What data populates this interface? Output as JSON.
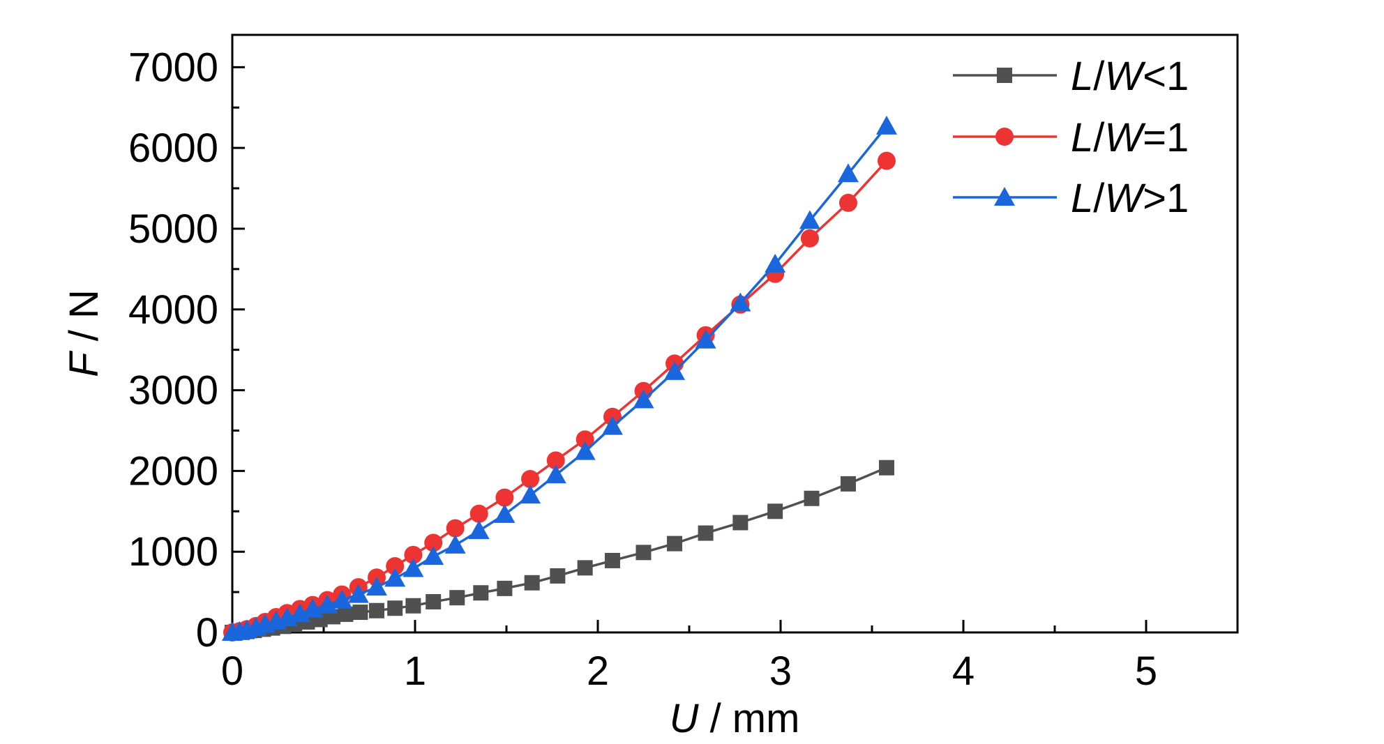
{
  "chart_data": {
    "type": "line",
    "xlabel": {
      "italic": "U",
      "rest": " / mm"
    },
    "ylabel": {
      "italic": "F",
      "rest": " / N"
    },
    "xlim": [
      0,
      5.5
    ],
    "ylim": [
      0,
      7400
    ],
    "xticks": [
      0,
      1,
      2,
      3,
      4,
      5
    ],
    "yticks": [
      0,
      1000,
      2000,
      3000,
      4000,
      5000,
      6000,
      7000
    ],
    "xtick_labels": [
      "0",
      "1",
      "2",
      "3",
      "4",
      "5"
    ],
    "ytick_labels": [
      "0",
      "1000",
      "2000",
      "3000",
      "4000",
      "5000",
      "6000",
      "7000"
    ],
    "grid": false,
    "legend_position": "top-right",
    "series": [
      {
        "name": "L/W<1",
        "name_parts": {
          "italic": "L",
          "slash": "/",
          "italic2": "W",
          "rest": "<1"
        },
        "color": "#505050",
        "marker": "square",
        "x": [
          0.0,
          0.04,
          0.08,
          0.12,
          0.17,
          0.22,
          0.28,
          0.34,
          0.41,
          0.48,
          0.55,
          0.62,
          0.7,
          0.79,
          0.89,
          0.99,
          1.1,
          1.23,
          1.36,
          1.49,
          1.64,
          1.78,
          1.93,
          2.08,
          2.25,
          2.42,
          2.59,
          2.78,
          2.97,
          3.17,
          3.37,
          3.58
        ],
        "y": [
          0,
          5,
          12,
          25,
          40,
          55,
          75,
          100,
          130,
          160,
          195,
          225,
          250,
          270,
          300,
          330,
          380,
          430,
          490,
          545,
          615,
          700,
          800,
          890,
          990,
          1100,
          1230,
          1360,
          1500,
          1660,
          1840,
          2040
        ]
      },
      {
        "name": "L/W=1",
        "name_parts": {
          "italic": "L",
          "slash": "/",
          "italic2": "W",
          "rest": "=1"
        },
        "color": "#ee3333",
        "marker": "circle",
        "x": [
          0.0,
          0.04,
          0.08,
          0.13,
          0.18,
          0.24,
          0.3,
          0.37,
          0.44,
          0.52,
          0.6,
          0.69,
          0.79,
          0.89,
          0.99,
          1.1,
          1.22,
          1.35,
          1.49,
          1.63,
          1.77,
          1.93,
          2.08,
          2.25,
          2.42,
          2.59,
          2.78,
          2.97,
          3.16,
          3.37,
          3.58
        ],
        "y": [
          0,
          15,
          40,
          80,
          130,
          190,
          240,
          290,
          340,
          400,
          470,
          560,
          680,
          820,
          960,
          1110,
          1290,
          1470,
          1670,
          1900,
          2130,
          2390,
          2670,
          2990,
          3330,
          3680,
          4060,
          4440,
          4880,
          5320,
          5840
        ]
      },
      {
        "name": "L/W>1",
        "name_parts": {
          "italic": "L",
          "slash": "/",
          "italic2": "W",
          "rest": ">1"
        },
        "color": "#1a66dd",
        "marker": "triangle",
        "x": [
          0.0,
          0.04,
          0.08,
          0.13,
          0.18,
          0.24,
          0.3,
          0.37,
          0.44,
          0.52,
          0.6,
          0.69,
          0.79,
          0.89,
          0.99,
          1.1,
          1.22,
          1.35,
          1.49,
          1.63,
          1.77,
          1.93,
          2.08,
          2.25,
          2.42,
          2.59,
          2.78,
          2.97,
          3.16,
          3.37,
          3.58
        ],
        "y": [
          0,
          10,
          30,
          60,
          100,
          140,
          180,
          230,
          290,
          340,
          400,
          470,
          560,
          670,
          790,
          940,
          1080,
          1260,
          1460,
          1700,
          1950,
          2240,
          2550,
          2880,
          3230,
          3620,
          4080,
          4560,
          5100,
          5680,
          6270
        ]
      }
    ]
  }
}
